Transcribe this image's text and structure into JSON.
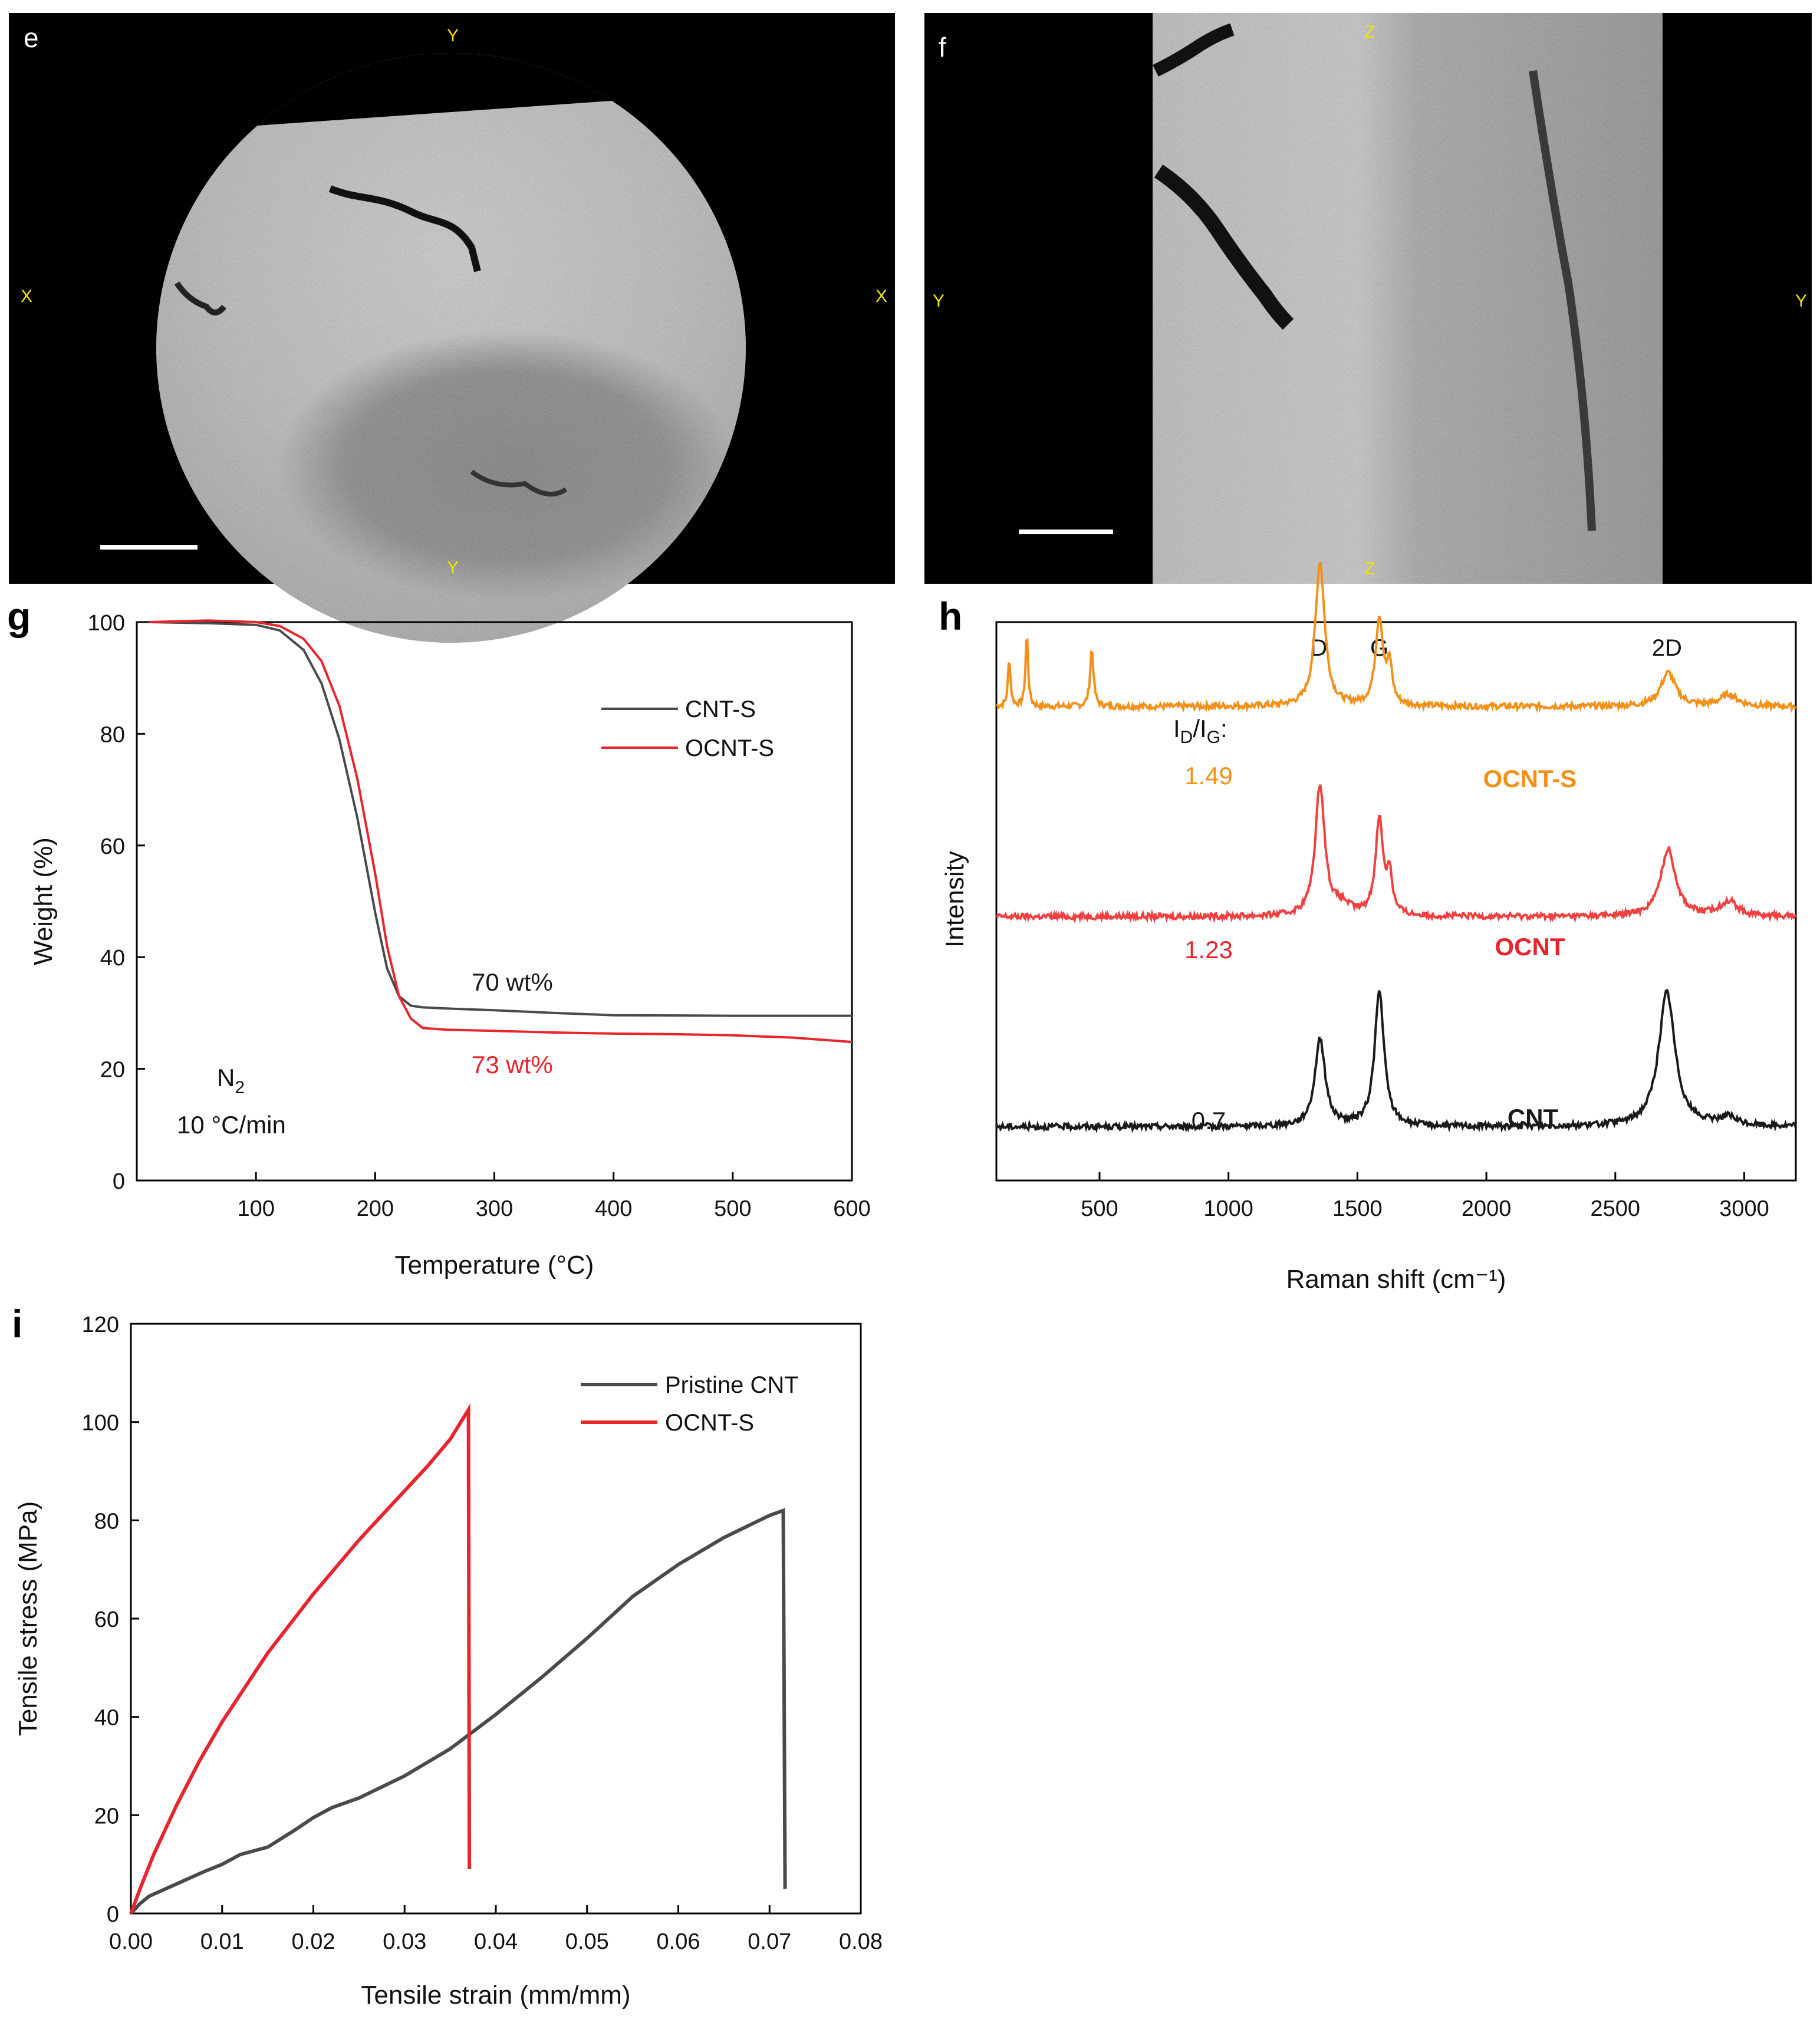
{
  "panels": {
    "e": {
      "letter": "e",
      "axis_marks": {
        "top": "Y",
        "bottom": "Y",
        "left": "X",
        "right": "X"
      }
    },
    "f": {
      "letter": "f",
      "axis_marks": {
        "top": "Z",
        "bottom": "Z",
        "left": "Y",
        "right": "Y"
      }
    }
  },
  "colors": {
    "black": "#1a1a1a",
    "gray_series": "#4a4a4a",
    "red": "#e8242c",
    "orange": "#f39019",
    "red_line": "#f04040"
  },
  "chart_data": [
    {
      "panel": "g",
      "type": "line",
      "xlabel": "Temperature (°C)",
      "ylabel": "Weight (%)",
      "xlim": [
        0,
        600
      ],
      "ylim": [
        0,
        100
      ],
      "xticks": [
        100,
        200,
        300,
        400,
        500,
        600
      ],
      "yticks": [
        0,
        20,
        40,
        60,
        80,
        100
      ],
      "legend": "top-right",
      "series": [
        {
          "name": "CNT-S",
          "color": "#4a4a4a",
          "x": [
            10,
            60,
            100,
            120,
            140,
            155,
            170,
            185,
            200,
            210,
            220,
            230,
            240,
            260,
            300,
            350,
            400,
            500,
            600
          ],
          "y": [
            100,
            99.8,
            99.5,
            98.5,
            95,
            89,
            79,
            65,
            48,
            38,
            33,
            31.3,
            31,
            30.8,
            30.5,
            30,
            29.6,
            29.5,
            29.5
          ]
        },
        {
          "name": "OCNT-S",
          "color": "#e8242c",
          "x": [
            10,
            60,
            100,
            120,
            140,
            155,
            170,
            185,
            200,
            210,
            220,
            230,
            240,
            260,
            300,
            350,
            400,
            450,
            500,
            550,
            600
          ],
          "y": [
            100,
            100.3,
            100,
            99.3,
            97,
            93,
            85,
            72,
            55,
            42,
            33,
            29,
            27.3,
            27,
            26.8,
            26.5,
            26.3,
            26.2,
            26,
            25.6,
            24.8
          ]
        }
      ],
      "annotations": [
        {
          "text": "70 wt%",
          "color": "#1a1a1a"
        },
        {
          "text": "73 wt%",
          "color": "#e8242c"
        }
      ],
      "conditions": {
        "gas": "N",
        "gas_sub": "2",
        "rate": "10 °C/min"
      }
    },
    {
      "panel": "h",
      "type": "line",
      "xlabel": "Raman shift (cm⁻¹)",
      "ylabel": "Intensity",
      "xlim": [
        100,
        3200
      ],
      "xticks": [
        500,
        1000,
        1500,
        2000,
        2500,
        3000
      ],
      "peak_labels": [
        {
          "text": "D",
          "x": 1350
        },
        {
          "text": "G",
          "x": 1585
        },
        {
          "text": "2D",
          "x": 2700
        }
      ],
      "ratio_label": {
        "I": "I",
        "sub1": "D",
        "slash": "/I",
        "sub2": "G",
        "colon": ":"
      },
      "series": [
        {
          "name": "OCNT-S",
          "color": "#f39019",
          "ratio": "1.49",
          "offset": 2.75,
          "peaks": [
            {
              "x": 150,
              "h": 0.28,
              "w": 6
            },
            {
              "x": 218,
              "h": 0.43,
              "w": 6
            },
            {
              "x": 470,
              "h": 0.34,
              "w": 8
            },
            {
              "x": 1355,
              "h": 0.86,
              "w": 22
            },
            {
              "x": 1585,
              "h": 0.52,
              "w": 18
            },
            {
              "x": 1625,
              "h": 0.22,
              "w": 12
            },
            {
              "x": 2705,
              "h": 0.2,
              "w": 35
            },
            {
              "x": 2940,
              "h": 0.07,
              "w": 40
            }
          ]
        },
        {
          "name": "OCNT",
          "color": "#f04040",
          "ratio": "1.23",
          "offset": 1.5,
          "peaks": [
            {
              "x": 1355,
              "h": 0.78,
              "w": 22
            },
            {
              "x": 1585,
              "h": 0.57,
              "w": 18
            },
            {
              "x": 1625,
              "h": 0.23,
              "w": 12
            },
            {
              "x": 1440,
              "h": 0.06,
              "w": 40
            },
            {
              "x": 2705,
              "h": 0.4,
              "w": 35
            },
            {
              "x": 2940,
              "h": 0.09,
              "w": 40
            }
          ]
        },
        {
          "name": "CNT",
          "color": "#1a1a1a",
          "ratio": "0.7",
          "offset": 0.25,
          "peaks": [
            {
              "x": 1355,
              "h": 0.52,
              "w": 24
            },
            {
              "x": 1585,
              "h": 0.8,
              "w": 22
            },
            {
              "x": 2700,
              "h": 0.8,
              "w": 38
            },
            {
              "x": 2935,
              "h": 0.05,
              "w": 40
            }
          ]
        }
      ]
    },
    {
      "panel": "i",
      "type": "line",
      "xlabel": "Tensile strain (mm/mm)",
      "ylabel": "Tensile stress (MPa)",
      "xlim": [
        0,
        0.08
      ],
      "ylim": [
        0,
        120
      ],
      "xticks": [
        "0.00",
        "0.01",
        "0.02",
        "0.03",
        "0.04",
        "0.05",
        "0.06",
        "0.07",
        "0.08"
      ],
      "yticks": [
        0,
        20,
        40,
        60,
        80,
        100,
        120
      ],
      "legend": "top-right",
      "series": [
        {
          "name": "Pristine CNT",
          "color": "#4a4a4a",
          "x": [
            0,
            0.001,
            0.002,
            0.005,
            0.008,
            0.01,
            0.012,
            0.015,
            0.018,
            0.02,
            0.022,
            0.025,
            0.03,
            0.035,
            0.04,
            0.045,
            0.05,
            0.055,
            0.06,
            0.065,
            0.07,
            0.0715,
            0.0717
          ],
          "y": [
            0,
            2,
            3.5,
            6,
            8.5,
            10,
            12,
            13.5,
            17,
            19.5,
            21.5,
            23.5,
            28,
            33.5,
            40.5,
            48,
            56,
            64.5,
            71,
            76.5,
            81,
            82,
            5
          ]
        },
        {
          "name": "OCNT-S",
          "color": "#e8242c",
          "x": [
            0,
            0.001,
            0.0025,
            0.005,
            0.0075,
            0.01,
            0.0125,
            0.015,
            0.0175,
            0.02,
            0.0225,
            0.025,
            0.0275,
            0.03,
            0.0325,
            0.035,
            0.037,
            0.0371
          ],
          "y": [
            0,
            5,
            12,
            22,
            31,
            39,
            46,
            53,
            59,
            65,
            70.5,
            76,
            81,
            86,
            91,
            96.5,
            102.5,
            9
          ]
        }
      ]
    }
  ]
}
